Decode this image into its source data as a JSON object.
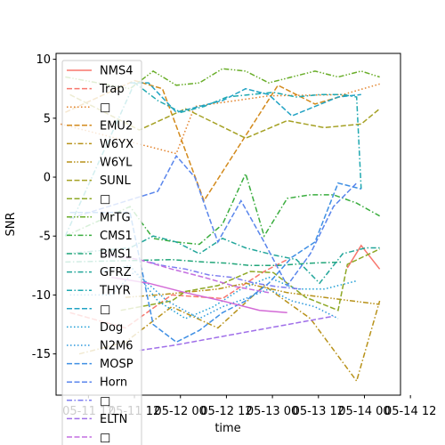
{
  "chart_data": {
    "type": "line",
    "xlabel": "time",
    "ylabel": "SNR",
    "ylim": [
      -18.5,
      10.5
    ],
    "y_ticks": [
      10,
      5,
      0,
      -5,
      -10,
      -15
    ],
    "x_ticks": [
      "05-11 12",
      "05-11 12",
      "05-12 00",
      "05-12 12",
      "05-13 00",
      "05-13 12",
      "05-14 00",
      "05-14 12"
    ],
    "x_range": [
      0,
      7.45
    ],
    "series": [
      {
        "name": "NMS4",
        "color": "#f8766d",
        "dash": "solid",
        "x": [
          6.3,
          6.6,
          7.0
        ],
        "y": [
          -7.7,
          -5.8,
          -7.8
        ]
      },
      {
        "name": "Trap",
        "color": "#f8766d",
        "dash": "dashed",
        "x": [
          0.3,
          1.5,
          2.5,
          3.6,
          4.5,
          5.0
        ],
        "y": [
          -11.5,
          -12.8,
          -10.0,
          -10.3,
          -8.0,
          -7.0
        ]
      },
      {
        "name": "",
        "color": "#e2822b",
        "dash": "dotted",
        "x": [
          0.1,
          2.6,
          3.0,
          4.6,
          6.2,
          7.0
        ],
        "y": [
          4.5,
          2.0,
          6.0,
          6.9,
          7.0,
          7.9
        ]
      },
      {
        "name": "EMU2",
        "color": "#d38a1c",
        "dash": "dashed",
        "x": [
          0.2,
          1.7,
          2.3,
          3.2,
          4.8,
          5.6,
          6.3
        ],
        "y": [
          5.5,
          8.2,
          7.5,
          -2.0,
          7.8,
          6.2,
          7.0
        ]
      },
      {
        "name": "W6YX",
        "color": "#b8921a",
        "dash": "dashdot",
        "x": [
          0.5,
          1.5,
          2.5,
          3.5,
          4.5,
          5.5,
          6.5,
          7.0
        ],
        "y": [
          -15.0,
          -14.0,
          -11.0,
          -12.8,
          -9.2,
          -12.0,
          -17.3,
          -10.5
        ]
      },
      {
        "name": "W6YL",
        "color": "#b8921a",
        "dash": "dashdotdot",
        "x": [
          1.5,
          2.2,
          3.5,
          4.1,
          5.0,
          5.8,
          6.6,
          7.0
        ],
        "y": [
          -10.2,
          -10.0,
          -9.5,
          -9.0,
          -9.8,
          -10.2,
          -10.6,
          -10.8
        ]
      },
      {
        "name": "SUNL",
        "color": "#a5a124",
        "dash": "dashed",
        "x": [
          0.3,
          1.8,
          2.8,
          4.1,
          5.0,
          5.8,
          6.6,
          7.0
        ],
        "y": [
          7.0,
          4.0,
          5.8,
          3.3,
          4.8,
          4.2,
          4.5,
          5.8
        ]
      },
      {
        "name": "",
        "color": "#8ea826",
        "dash": "dashed",
        "x": [
          1.4,
          2.5,
          2.8,
          3.5,
          4.2,
          4.7,
          5.4,
          6.1,
          6.3,
          7.0
        ],
        "y": [
          -11.3,
          -10.5,
          -9.7,
          -9.2,
          -8.0,
          -8.1,
          -10.2,
          -11.3,
          -7.4,
          -6.1
        ]
      },
      {
        "name": "MrTG",
        "color": "#6aae2a",
        "dash": "dashdotdot",
        "x": [
          0.2,
          1.6,
          2.1,
          2.6,
          3.1,
          3.6,
          4.1,
          4.6,
          5.1,
          5.6,
          6.1,
          6.6,
          7.0
        ],
        "y": [
          8.5,
          7.5,
          9.0,
          7.8,
          8.0,
          9.2,
          9.0,
          8.0,
          8.5,
          9.0,
          8.5,
          9.0,
          8.5
        ]
      },
      {
        "name": "CMS1",
        "color": "#3aad3e",
        "dash": "dashdot",
        "x": [
          0.2,
          1.6,
          2.1,
          2.6,
          3.1,
          3.6,
          4.1,
          4.5,
          5.0,
          5.5,
          6.0,
          6.5,
          7.0
        ],
        "y": [
          -5.0,
          -2.5,
          -5.2,
          -5.5,
          -5.7,
          -4.0,
          0.3,
          -5.0,
          -1.8,
          -1.5,
          -1.5,
          -2.2,
          -3.3
        ]
      },
      {
        "name": "BMS1",
        "color": "#22a67a",
        "dash": "dashdot",
        "x": [
          0.2,
          2.5,
          3.2,
          3.7,
          4.2,
          4.8,
          5.5,
          6.2
        ],
        "y": [
          -7.2,
          -7.0,
          -7.2,
          -7.3,
          -7.5,
          -7.5,
          -7.3,
          -7.2
        ]
      },
      {
        "name": "GFRZ",
        "color": "#22a69a",
        "dash": "dashdot",
        "x": [
          0.2,
          1.6,
          2.1,
          2.6,
          3.1,
          3.6,
          4.1,
          4.7,
          5.2,
          5.7,
          6.2,
          6.7,
          7.0
        ],
        "y": [
          -6.5,
          -6.0,
          -5.0,
          -5.5,
          -6.5,
          -5.2,
          -6.0,
          -6.6,
          -7.0,
          -9.0,
          -6.5,
          -6.0,
          -6.0
        ]
      },
      {
        "name": "THYR",
        "color": "#1fa8b0",
        "dash": "dashdot",
        "x": [
          0.2,
          1.7,
          2.2,
          2.7,
          3.2,
          3.7,
          4.2,
          4.7,
          5.2,
          5.7,
          6.2,
          6.5,
          6.6
        ],
        "y": [
          -5.0,
          8.0,
          6.5,
          5.5,
          6.0,
          6.8,
          7.0,
          7.2,
          6.8,
          7.0,
          7.0,
          6.8,
          -1.0
        ]
      },
      {
        "name": "",
        "color": "#22a3c4",
        "dash": "dashed",
        "x": [
          1.6,
          2.0,
          2.6,
          3.1,
          3.6,
          4.1,
          4.6,
          5.1,
          5.6,
          6.1,
          6.6
        ],
        "y": [
          8.0,
          8.0,
          5.5,
          6.0,
          6.5,
          7.5,
          7.0,
          5.2,
          6.0,
          6.8,
          7.0
        ]
      },
      {
        "name": "Dog",
        "color": "#1f9fd6",
        "dash": "dotted",
        "x": [
          1.0,
          1.6,
          2.2,
          2.8,
          3.4,
          4.0,
          4.6,
          5.2,
          5.8,
          6.5
        ],
        "y": [
          -8.0,
          -7.5,
          -10.5,
          -12.0,
          -11.0,
          -9.5,
          -8.5,
          -9.5,
          -9.5,
          -8.8
        ]
      },
      {
        "name": "N2M6",
        "color": "#2c98dd",
        "dash": "dotted",
        "x": [
          0.3,
          1.2,
          1.7,
          2.4,
          3.1,
          3.6,
          4.1,
          4.6,
          5.1,
          5.6,
          6.1
        ],
        "y": [
          -10.0,
          -10.0,
          -8.0,
          -10.5,
          -12.0,
          -11.0,
          -10.3,
          -9.5,
          -10.5,
          -11.0,
          -12.0
        ]
      },
      {
        "name": "MOSP",
        "color": "#3f8fe4",
        "dash": "dashed",
        "x": [
          0.3,
          1.6,
          2.1,
          2.6,
          3.1,
          3.6,
          4.1,
          4.6,
          5.1,
          5.6,
          6.1,
          6.6
        ],
        "y": [
          -3.0,
          -3.0,
          -12.5,
          -14.0,
          -13.0,
          -11.5,
          -10.5,
          -9.0,
          -6.8,
          -5.5,
          -0.5,
          -1.0
        ]
      },
      {
        "name": "Horn",
        "color": "#5a86ec",
        "dash": "dashed",
        "x": [
          0.3,
          1.7,
          2.2,
          2.6,
          3.0,
          3.5,
          4.0,
          4.5,
          5.0,
          5.5,
          6.0,
          6.5
        ],
        "y": [
          -3.5,
          -1.8,
          -1.2,
          1.8,
          0.0,
          -5.5,
          -2.0,
          -5.5,
          -9.2,
          -6.5,
          -2.5,
          -0.5
        ]
      },
      {
        "name": "",
        "color": "#7c7cf0",
        "dash": "dashdot",
        "x": [
          1.8,
          2.3,
          2.8,
          3.3,
          3.8,
          4.3,
          4.8,
          5.3
        ],
        "y": [
          -7.0,
          -7.5,
          -7.8,
          -8.3,
          -8.5,
          -9.0,
          -9.3,
          -9.5
        ]
      },
      {
        "name": "ELTN",
        "color": "#a06fe9",
        "dash": "dashed",
        "x": [
          1.8,
          2.5,
          3.2,
          3.9,
          4.6,
          5.3,
          6.0
        ],
        "y": [
          -14.7,
          -14.3,
          -13.8,
          -13.3,
          -12.8,
          -12.3,
          -11.8
        ]
      },
      {
        "name": "",
        "color": "#c46ee0",
        "dash": "dashed",
        "x": [
          1.0,
          1.8,
          2.5,
          3.2,
          3.9,
          4.6
        ],
        "y": [
          -6.5,
          -7.0,
          -7.8,
          -8.5,
          -9.3,
          -9.8
        ]
      },
      {
        "name": "",
        "color": "#d36ad6",
        "dash": "solid",
        "x": [
          1.2,
          2.0,
          2.8,
          3.6,
          4.4,
          5.0
        ],
        "y": [
          -8.5,
          -9.0,
          -9.8,
          -10.5,
          -11.3,
          -11.5
        ]
      }
    ],
    "legend": {
      "position": "upper-left",
      "entries": [
        {
          "label": "NMS4",
          "color": "#f8766d",
          "dash": "solid"
        },
        {
          "label": "Trap",
          "color": "#f8766d",
          "dash": "dashed"
        },
        {
          "label": "□",
          "color": "#e2822b",
          "dash": "dotted"
        },
        {
          "label": "EMU2",
          "color": "#d38a1c",
          "dash": "dashed"
        },
        {
          "label": "W6YX",
          "color": "#b8921a",
          "dash": "dashdot"
        },
        {
          "label": "W6YL",
          "color": "#b8921a",
          "dash": "dashdotdot"
        },
        {
          "label": "SUNL",
          "color": "#a5a124",
          "dash": "dashed"
        },
        {
          "label": "□",
          "color": "#8ea826",
          "dash": "dashed"
        },
        {
          "label": "MrTG",
          "color": "#6aae2a",
          "dash": "dashdotdot"
        },
        {
          "label": "CMS1",
          "color": "#3aad3e",
          "dash": "dashdot"
        },
        {
          "label": "BMS1",
          "color": "#22a67a",
          "dash": "dashdot"
        },
        {
          "label": "GFRZ",
          "color": "#22a69a",
          "dash": "dashdot"
        },
        {
          "label": "THYR",
          "color": "#1fa8b0",
          "dash": "dashdot"
        },
        {
          "label": "□",
          "color": "#22a3c4",
          "dash": "dashed"
        },
        {
          "label": "Dog",
          "color": "#1f9fd6",
          "dash": "dotted"
        },
        {
          "label": "N2M6",
          "color": "#2c98dd",
          "dash": "dotted"
        },
        {
          "label": "MOSP",
          "color": "#3f8fe4",
          "dash": "dashed"
        },
        {
          "label": "Horn",
          "color": "#5a86ec",
          "dash": "dashed"
        },
        {
          "label": "□",
          "color": "#7c7cf0",
          "dash": "dashdot"
        },
        {
          "label": "ELTN",
          "color": "#a06fe9",
          "dash": "dashed"
        },
        {
          "label": "□",
          "color": "#c46ee0",
          "dash": "dashed"
        }
      ]
    },
    "grid": false
  }
}
